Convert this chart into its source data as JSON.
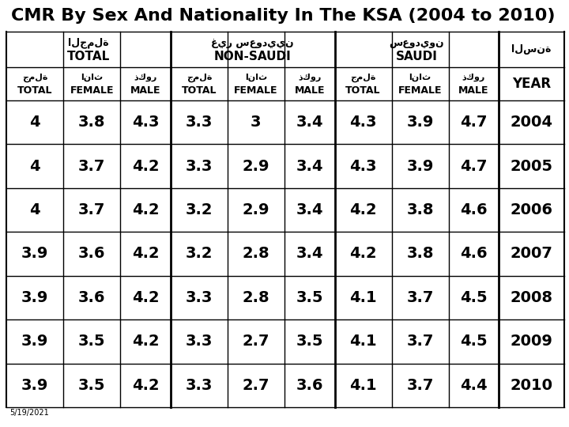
{
  "title": "CMR By Sex And Nationality In The KSA (2004 to 2010)",
  "arabic_total": "الجملة",
  "arabic_nonsaudi": "غير سعوديين",
  "arabic_saudi": "سعوديون",
  "arabic_year": "السنة",
  "arabic_total_sub": "جملة",
  "arabic_female_sub": "اناث",
  "arabic_male_sub": "ذكور",
  "col_groups": [
    "TOTAL",
    "NON-SAUDI",
    "SAUDI"
  ],
  "col_subheaders": [
    "TOTAL",
    "FEMALE",
    "MALE"
  ],
  "year_col": "YEAR",
  "years": [
    2004,
    2005,
    2006,
    2007,
    2008,
    2009,
    2010
  ],
  "data": [
    [
      4.0,
      3.8,
      4.3,
      3.3,
      3.0,
      3.4,
      4.3,
      3.9,
      4.7
    ],
    [
      4.0,
      3.7,
      4.2,
      3.3,
      2.9,
      3.4,
      4.3,
      3.9,
      4.7
    ],
    [
      4.0,
      3.7,
      4.2,
      3.2,
      2.9,
      3.4,
      4.2,
      3.8,
      4.6
    ],
    [
      3.9,
      3.6,
      4.2,
      3.2,
      2.8,
      3.4,
      4.2,
      3.8,
      4.6
    ],
    [
      3.9,
      3.6,
      4.2,
      3.3,
      2.8,
      3.5,
      4.1,
      3.7,
      4.5
    ],
    [
      3.9,
      3.5,
      4.2,
      3.3,
      2.7,
      3.5,
      4.1,
      3.7,
      4.5
    ],
    [
      3.9,
      3.5,
      4.2,
      3.3,
      2.7,
      3.6,
      4.1,
      3.7,
      4.4
    ]
  ],
  "footnote": "5/19/2021",
  "bg_color": "#ffffff",
  "text_color": "#000000",
  "line_color": "#000000"
}
